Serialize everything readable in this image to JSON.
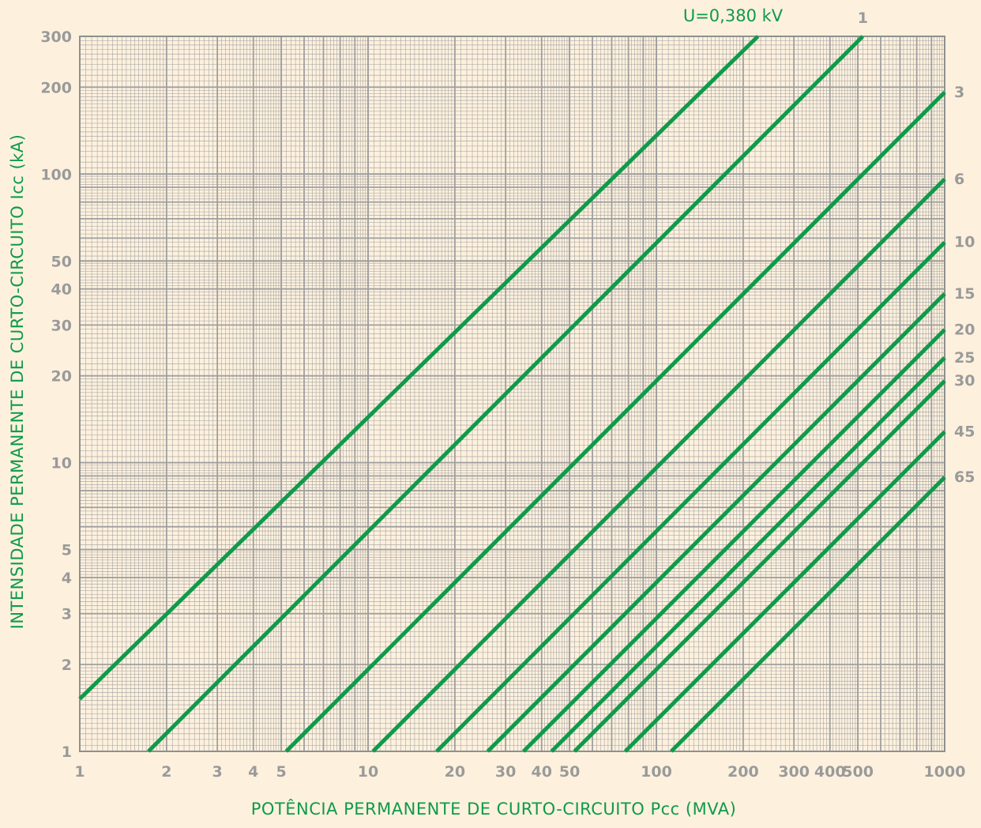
{
  "chart_data": {
    "type": "line",
    "x_scale": "log",
    "y_scale": "log",
    "xlim": [
      1,
      1000
    ],
    "ylim": [
      1,
      300
    ],
    "grid": true,
    "xlabel": "POTÊNCIA PERMANENTE DE CURTO-CIRCUITO Pcc (MVA)",
    "ylabel": "INTENSIDADE PERMANENTE DE CURTO-CIRCUITO Icc (kA)",
    "x_ticks": [
      1,
      2,
      3,
      4,
      5,
      10,
      20,
      30,
      40,
      50,
      100,
      200,
      300,
      400,
      500,
      1000
    ],
    "x_tick_labels": [
      "1",
      "2",
      "3",
      "4",
      "5",
      "10",
      "20",
      "30",
      "40",
      "50",
      "100",
      "200",
      "300",
      "400",
      "500",
      "1000"
    ],
    "y_ticks": [
      1,
      2,
      3,
      4,
      5,
      10,
      20,
      30,
      40,
      50,
      100,
      200,
      300
    ],
    "y_tick_labels": [
      "1",
      "2",
      "3",
      "4",
      "5",
      "10",
      "20",
      "30",
      "40",
      "50",
      "100",
      "200",
      "300"
    ],
    "voltage_title": "U=0,380 kV",
    "series": [
      {
        "label": "",
        "kv": 0.38,
        "x": [
          1,
          225
        ],
        "y": [
          1.52,
          300
        ]
      },
      {
        "label": "1",
        "kv": 1,
        "x": [
          1.73,
          520
        ],
        "y": [
          1,
          300
        ]
      },
      {
        "label": "3",
        "kv": 3,
        "x": [
          5.2,
          1000
        ],
        "y": [
          1,
          192
        ]
      },
      {
        "label": "6",
        "kv": 6,
        "x": [
          10.4,
          1000
        ],
        "y": [
          1,
          96
        ]
      },
      {
        "label": "10",
        "kv": 10,
        "x": [
          17.3,
          1000
        ],
        "y": [
          1,
          58
        ]
      },
      {
        "label": "15",
        "kv": 15,
        "x": [
          26,
          1000
        ],
        "y": [
          1,
          38.5
        ]
      },
      {
        "label": "20",
        "kv": 20,
        "x": [
          34.6,
          1000
        ],
        "y": [
          1,
          28.9
        ]
      },
      {
        "label": "25",
        "kv": 25,
        "x": [
          43.3,
          1000
        ],
        "y": [
          1,
          23.1
        ]
      },
      {
        "label": "30",
        "kv": 30,
        "x": [
          52,
          1000
        ],
        "y": [
          1,
          19.2
        ]
      },
      {
        "label": "45",
        "kv": 45,
        "x": [
          78,
          1000
        ],
        "y": [
          1,
          12.8
        ]
      },
      {
        "label": "65",
        "kv": 65,
        "x": [
          112.6,
          1000
        ],
        "y": [
          1,
          8.9
        ]
      }
    ],
    "colors": {
      "background": "#fdf1de",
      "grid": "#9f9f9f",
      "line": "#0f9a4a",
      "tick_text": "#9a9a9a",
      "title_text": "#0f9a4a"
    }
  }
}
